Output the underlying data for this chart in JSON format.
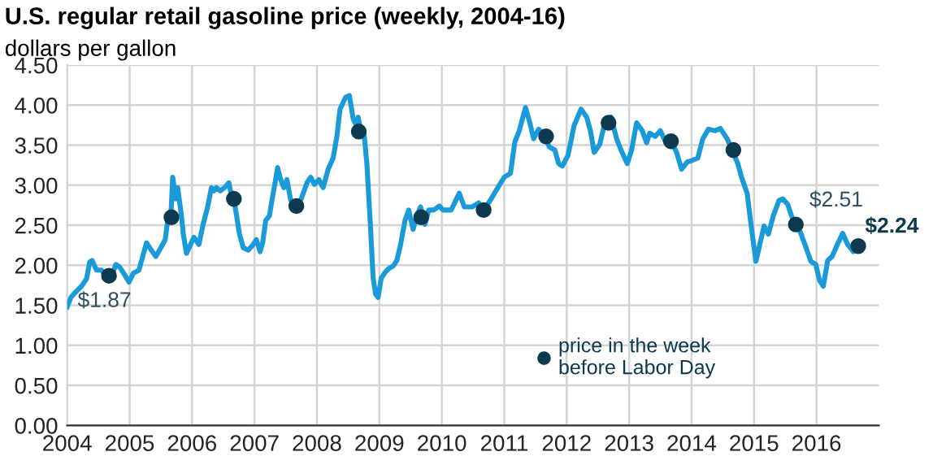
{
  "chart_data": {
    "type": "line",
    "title": "U.S. regular retail gasoline price (weekly, 2004-16)",
    "ylabel": "dollars per gallon",
    "xlim": [
      2004,
      2017
    ],
    "xticks": [
      2004,
      2005,
      2006,
      2007,
      2008,
      2009,
      2010,
      2011,
      2012,
      2013,
      2014,
      2015,
      2016
    ],
    "ylim": [
      0,
      4.5
    ],
    "yticks": [
      {
        "value": 0,
        "label": "0.00"
      },
      {
        "value": 0.5,
        "label": "0.50"
      },
      {
        "value": 1,
        "label": "1.00"
      },
      {
        "value": 1.5,
        "label": "1.50"
      },
      {
        "value": 2,
        "label": "2.00"
      },
      {
        "value": 2.5,
        "label": "2.50"
      },
      {
        "value": 3,
        "label": "3.00"
      },
      {
        "value": 3.5,
        "label": "3.50"
      },
      {
        "value": 4,
        "label": "4.00"
      },
      {
        "value": 4.5,
        "label": "4.50"
      }
    ],
    "grid": true,
    "legend": "bottom",
    "series": [
      {
        "color": "#1a9ad9",
        "marker": "none",
        "line_style": "solid",
        "x": [
          2004.0,
          2004.06,
          2004.14,
          2004.23,
          2004.31,
          2004.36,
          2004.4,
          2004.47,
          2004.55,
          2004.61,
          2004.7,
          2004.78,
          2004.84,
          2004.93,
          2004.99,
          2005.06,
          2005.15,
          2005.21,
          2005.27,
          2005.33,
          2005.42,
          2005.5,
          2005.57,
          2005.61,
          2005.66,
          2005.69,
          2005.74,
          2005.77,
          2005.83,
          2005.86,
          2005.91,
          2005.97,
          2006.03,
          2006.11,
          2006.18,
          2006.25,
          2006.31,
          2006.35,
          2006.39,
          2006.45,
          2006.52,
          2006.59,
          2006.64,
          2006.69,
          2006.76,
          2006.82,
          2006.9,
          2006.97,
          2007.03,
          2007.09,
          2007.13,
          2007.18,
          2007.24,
          2007.29,
          2007.33,
          2007.37,
          2007.42,
          2007.47,
          2007.52,
          2007.58,
          2007.67,
          2007.75,
          2007.84,
          2007.9,
          2007.96,
          2008.03,
          2008.1,
          2008.18,
          2008.26,
          2008.32,
          2008.37,
          2008.46,
          2008.52,
          2008.58,
          2008.63,
          2008.66,
          2008.71,
          2008.75,
          2008.8,
          2008.86,
          2008.9,
          2008.94,
          2008.98,
          2009.03,
          2009.09,
          2009.15,
          2009.22,
          2009.28,
          2009.34,
          2009.41,
          2009.47,
          2009.54,
          2009.6,
          2009.66,
          2009.73,
          2009.79,
          2009.87,
          2009.96,
          2010.02,
          2010.15,
          2010.28,
          2010.36,
          2010.49,
          2010.59,
          2010.66,
          2010.79,
          2010.92,
          2011.0,
          2011.1,
          2011.17,
          2011.24,
          2011.34,
          2011.41,
          2011.47,
          2011.55,
          2011.64,
          2011.72,
          2011.81,
          2011.87,
          2011.93,
          2012.02,
          2012.12,
          2012.23,
          2012.32,
          2012.38,
          2012.44,
          2012.53,
          2012.61,
          2012.71,
          2012.8,
          2012.87,
          2012.97,
          2013.04,
          2013.12,
          2013.21,
          2013.28,
          2013.33,
          2013.42,
          2013.5,
          2013.59,
          2013.67,
          2013.76,
          2013.84,
          2013.93,
          2014.01,
          2014.1,
          2014.18,
          2014.27,
          2014.38,
          2014.46,
          2014.57,
          2014.65,
          2014.74,
          2014.8,
          2014.89,
          2014.95,
          2015.03,
          2015.09,
          2015.16,
          2015.23,
          2015.31,
          2015.4,
          2015.46,
          2015.54,
          2015.6,
          2015.65,
          2015.74,
          2015.82,
          2015.91,
          2015.99,
          2016.05,
          2016.11,
          2016.18,
          2016.25,
          2016.33,
          2016.42,
          2016.5,
          2016.59,
          2016.65
        ],
        "values": [
          1.48,
          1.6,
          1.67,
          1.74,
          1.83,
          2.04,
          2.06,
          1.94,
          1.94,
          1.87,
          1.84,
          2.01,
          1.98,
          1.87,
          1.79,
          1.9,
          1.94,
          2.11,
          2.28,
          2.21,
          2.11,
          2.22,
          2.32,
          2.56,
          2.6,
          3.1,
          2.83,
          2.97,
          2.62,
          2.39,
          2.15,
          2.25,
          2.35,
          2.26,
          2.52,
          2.73,
          2.97,
          2.93,
          2.97,
          2.93,
          2.97,
          3.03,
          2.83,
          2.73,
          2.39,
          2.22,
          2.19,
          2.25,
          2.32,
          2.17,
          2.28,
          2.56,
          2.62,
          2.86,
          3.03,
          3.22,
          3.07,
          2.97,
          3.07,
          2.81,
          2.76,
          2.83,
          3.03,
          3.1,
          3.01,
          3.07,
          2.97,
          3.2,
          3.34,
          3.61,
          3.95,
          4.1,
          4.12,
          3.83,
          3.75,
          3.85,
          3.65,
          3.68,
          3.27,
          2.45,
          1.84,
          1.64,
          1.6,
          1.84,
          1.91,
          1.96,
          1.99,
          2.06,
          2.26,
          2.56,
          2.69,
          2.45,
          2.62,
          2.73,
          2.51,
          2.69,
          2.69,
          2.74,
          2.69,
          2.69,
          2.9,
          2.73,
          2.73,
          2.78,
          2.67,
          2.83,
          3.0,
          3.1,
          3.15,
          3.54,
          3.68,
          3.97,
          3.78,
          3.58,
          3.7,
          3.63,
          3.48,
          3.44,
          3.27,
          3.24,
          3.37,
          3.75,
          3.95,
          3.85,
          3.68,
          3.41,
          3.51,
          3.78,
          3.85,
          3.58,
          3.44,
          3.27,
          3.44,
          3.78,
          3.68,
          3.53,
          3.65,
          3.61,
          3.68,
          3.53,
          3.56,
          3.41,
          3.2,
          3.29,
          3.31,
          3.34,
          3.58,
          3.7,
          3.68,
          3.71,
          3.58,
          3.44,
          3.27,
          3.1,
          2.9,
          2.52,
          2.05,
          2.25,
          2.49,
          2.39,
          2.62,
          2.81,
          2.83,
          2.76,
          2.62,
          2.52,
          2.42,
          2.25,
          2.05,
          2.01,
          1.81,
          1.74,
          2.06,
          2.11,
          2.25,
          2.4,
          2.26,
          2.17,
          2.22
        ]
      },
      {
        "type": "scatter",
        "name": "price in the week before Labor Day",
        "color": "#0d3a4f",
        "marker": "circle",
        "x": [
          2004.67,
          2005.67,
          2006.67,
          2007.67,
          2008.67,
          2009.67,
          2010.67,
          2011.67,
          2012.67,
          2013.67,
          2014.67,
          2015.67,
          2016.67
        ],
        "values": [
          1.87,
          2.6,
          2.83,
          2.74,
          3.67,
          2.6,
          2.69,
          3.61,
          3.78,
          3.55,
          3.44,
          2.51,
          2.24
        ],
        "value_labels": [
          "$1.87",
          null,
          null,
          null,
          null,
          null,
          null,
          null,
          null,
          null,
          null,
          "$2.51",
          "$2.24"
        ]
      }
    ]
  }
}
